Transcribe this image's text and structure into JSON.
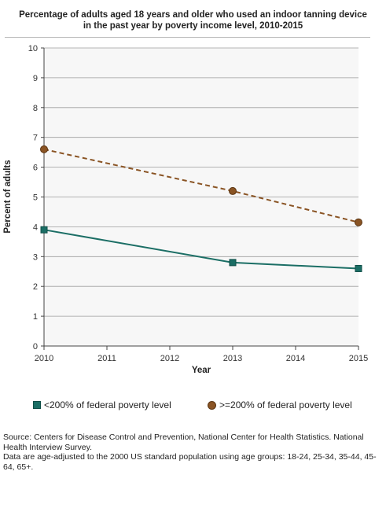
{
  "chart_data": {
    "type": "line",
    "title": "Percentage of adults aged 18 years and older who used an indoor tanning device in the past year by poverty income level, 2010-2015",
    "xlabel": "Year",
    "ylabel": "Percent of adults",
    "xlim": [
      2010,
      2015
    ],
    "ylim": [
      0,
      10
    ],
    "x_ticks": [
      "2010",
      "2011",
      "2012",
      "2013",
      "2014",
      "2015"
    ],
    "y_ticks": [
      "0",
      "1",
      "2",
      "3",
      "4",
      "5",
      "6",
      "7",
      "8",
      "9",
      "10"
    ],
    "grid": true,
    "legend_position": "bottom",
    "series": [
      {
        "name": "<200% of federal poverty level",
        "x": [
          2010,
          2013,
          2015
        ],
        "values": [
          3.9,
          2.8,
          2.6
        ],
        "color": "#1b6e65",
        "marker": "square",
        "line_style": "solid"
      },
      {
        "name": ">=200% of federal poverty level",
        "x": [
          2010,
          2013,
          2015
        ],
        "values": [
          6.6,
          5.2,
          4.15
        ],
        "color": "#8a5424",
        "marker": "circle",
        "line_style": "dashed"
      }
    ]
  },
  "footer": {
    "source": "Source: Centers for Disease Control and Prevention, National Center for Health Statistics. National Health Interview Survey.",
    "note": "Data are age-adjusted to the 2000 US standard population using age groups: 18-24, 25-34, 35-44, 45-64, 65+."
  },
  "colors": {
    "plot_background": "#f7f7f7",
    "gridline": "#9e9e9e"
  }
}
